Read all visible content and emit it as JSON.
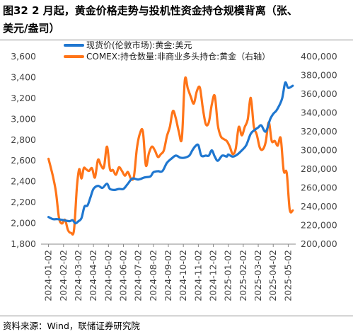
{
  "figure": {
    "title_line1": "图32 2 月起，黄金价格走势与投机性资金持仓规模背离（张、",
    "title_line2": "美元/盎司）",
    "source": "资料来源：Wind，联储证券研究院"
  },
  "chart_data": {
    "type": "line",
    "x_categories": [
      "2024-01-02",
      "2024-02-02",
      "2024-03-02",
      "2024-04-02",
      "2024-05-02",
      "2024-06-02",
      "2024-07-02",
      "2024-08-02",
      "2024-09-02",
      "2024-10-02",
      "2024-11-02",
      "2024-12-02",
      "2025-01-02",
      "2025-02-02",
      "2025-03-02",
      "2025-04-02",
      "2025-05-02"
    ],
    "grid": false,
    "legend_position": "top",
    "left_axis": {
      "ylim": [
        1800,
        3600
      ],
      "ticks": [
        "1,800",
        "2,000",
        "2,200",
        "2,400",
        "2,600",
        "2,800",
        "3,000",
        "3,200",
        "3,400",
        "3,600"
      ]
    },
    "right_axis": {
      "ylim": [
        200000,
        400000
      ],
      "ticks": [
        "200,000",
        "220,000",
        "240,000",
        "260,000",
        "280,000",
        "300,000",
        "320,000",
        "340,000",
        "360,000",
        "380,000",
        "400,000"
      ]
    },
    "series": [
      {
        "name": "现货价(伦敦市场):黄金:美元",
        "axis": "left",
        "color": "#1f77d0",
        "x": [
          0,
          0.3,
          0.6,
          1.0,
          1.4,
          1.6,
          1.8,
          2.0,
          2.2,
          2.4,
          2.6,
          2.8,
          3.0,
          3.3,
          3.6,
          3.9,
          4.1,
          4.4,
          4.7,
          5.0,
          5.3,
          5.6,
          6.0,
          6.4,
          6.8,
          7.0,
          7.3,
          7.6,
          7.9,
          8.2,
          8.5,
          8.8,
          9.1,
          9.4,
          9.6,
          9.8,
          10.0,
          10.2,
          10.5,
          10.7,
          10.9,
          11.1,
          11.3,
          11.6,
          11.9,
          12.0,
          12.3,
          12.6,
          12.9,
          13.2,
          13.5,
          13.8,
          14.0,
          14.2,
          14.5,
          14.8,
          15.0,
          15.2,
          15.4,
          15.6,
          15.8,
          16.0,
          16.3
        ],
        "values": [
          2060,
          2040,
          2040,
          2030,
          2020,
          2030,
          2000,
          2020,
          2050,
          2160,
          2170,
          2250,
          2330,
          2360,
          2340,
          2380,
          2330,
          2320,
          2330,
          2330,
          2380,
          2430,
          2420,
          2440,
          2450,
          2490,
          2500,
          2500,
          2580,
          2620,
          2650,
          2630,
          2630,
          2650,
          2700,
          2740,
          2750,
          2650,
          2650,
          2650,
          2700,
          2640,
          2600,
          2650,
          2640,
          2660,
          2640,
          2660,
          2700,
          2750,
          2860,
          2900,
          2920,
          2940,
          2880,
          3000,
          3050,
          3080,
          3130,
          3200,
          3350,
          3300,
          3320
        ]
      },
      {
        "name": "COMEX:持仓数量:非商业多头持仓:黄金（右轴）",
        "axis": "right",
        "color": "#ff7418",
        "x": [
          0,
          0.3,
          0.5,
          0.7,
          0.9,
          1.1,
          1.3,
          1.5,
          1.7,
          1.9,
          2.05,
          2.2,
          2.35,
          2.5,
          2.7,
          2.9,
          3.1,
          3.3,
          3.5,
          3.7,
          3.9,
          4.1,
          4.3,
          4.5,
          4.7,
          4.9,
          5.1,
          5.3,
          5.5,
          5.7,
          5.9,
          6.1,
          6.3,
          6.5,
          6.7,
          6.9,
          7.1,
          7.3,
          7.5,
          7.7,
          7.9,
          8.1,
          8.3,
          8.5,
          8.7,
          8.9,
          9.1,
          9.3,
          9.5,
          9.7,
          9.9,
          10.1,
          10.3,
          10.5,
          10.7,
          10.9,
          11.1,
          11.3,
          11.5,
          11.7,
          11.9,
          12.1,
          12.3,
          12.5,
          12.7,
          12.9,
          13.1,
          13.3,
          13.5,
          13.7,
          13.9,
          14.1,
          14.3,
          14.5,
          14.7,
          14.9,
          15.1,
          15.3,
          15.5,
          15.7,
          15.9,
          16.1,
          16.3
        ],
        "values": [
          291000,
          272000,
          255000,
          228000,
          222000,
          226000,
          215000,
          212000,
          215000,
          262000,
          280000,
          270000,
          281000,
          280000,
          278000,
          281000,
          271000,
          290000,
          284000,
          282000,
          304000,
          280000,
          279000,
          274000,
          282000,
          278000,
          273000,
          277000,
          270000,
          272000,
          302000,
          318000,
          320000,
          284000,
          297000,
          304000,
          300000,
          293000,
          296000,
          300000,
          315000,
          325000,
          342000,
          334000,
          320000,
          313000,
          375000,
          366000,
          357000,
          350000,
          363000,
          367000,
          345000,
          328000,
          330000,
          349000,
          358000,
          327000,
          315000,
          312000,
          310000,
          304000,
          296000,
          302000,
          325000,
          316000,
          325000,
          333000,
          356000,
          326000,
          317000,
          303000,
          301000,
          309000,
          330000,
          310000,
          310000,
          305000,
          313000,
          278000,
          276000,
          237000,
          236000
        ]
      }
    ]
  }
}
